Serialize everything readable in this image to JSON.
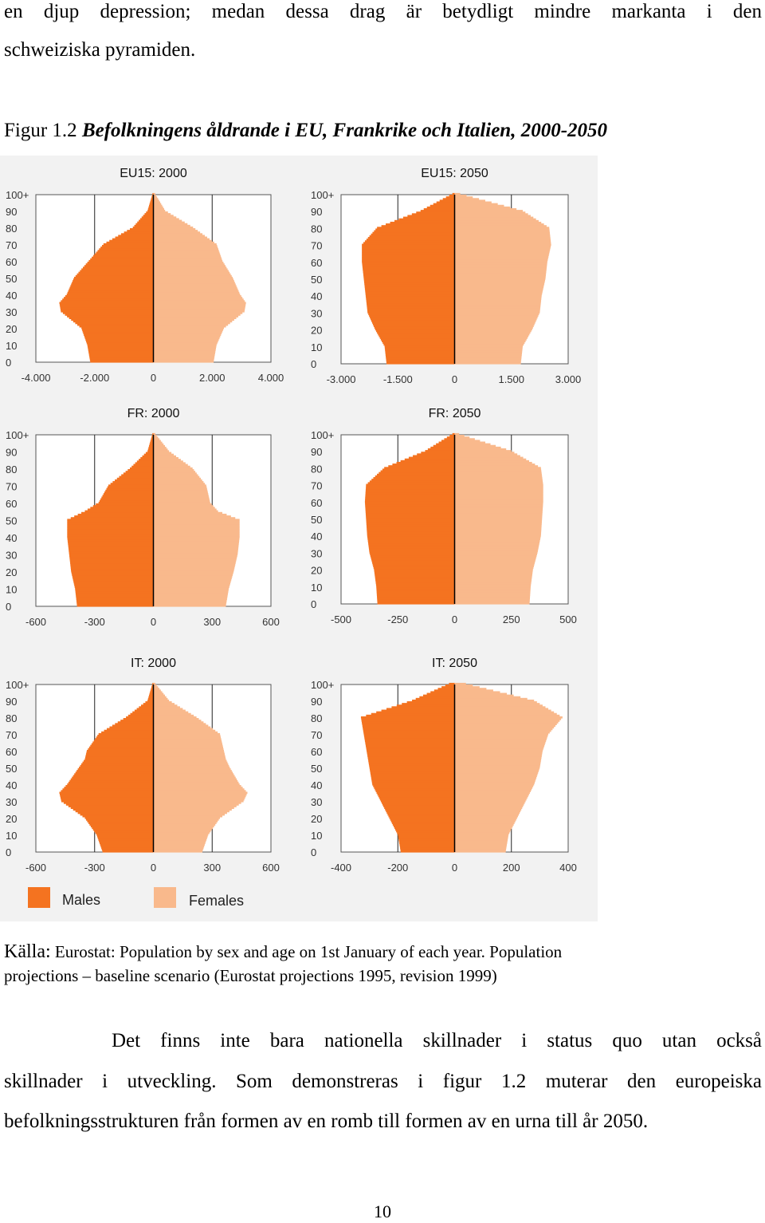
{
  "text": {
    "line1": "en djup depression; medan dessa drag är betydligt mindre markanta i den",
    "line2": "schweiziska pyramiden.",
    "caption_prefix": "Figur 1.2 ",
    "caption_title": "Befolkningens åldrande i EU, Frankrike och Italien, 2000-2050",
    "source_label": "Källa:",
    "source_line1": "Eurostat: Population by sex and age on 1st January of each year. Population",
    "source_line2": "projections – baseline scenario (Eurostat projections 1995, revision 1999)",
    "para_line1": "Det finns inte bara nationella skillnader i status quo utan också",
    "para_line2": "skillnader i utveckling. Som demonstreras i figur 1.2 muterar den europeiska",
    "para_line3": "befolkningsstrukturen från formen av en romb till formen av en urna till år 2050.",
    "page_number": "10"
  },
  "colors": {
    "males": "#f47320",
    "females": "#f9b98c",
    "figure_bg": "#f2f2f2"
  },
  "chart_data": [
    {
      "type": "population-pyramid",
      "title": "EU15: 2000",
      "ylabels": [
        "100+",
        "90",
        "80",
        "70",
        "60",
        "50",
        "40",
        "30",
        "20",
        "10",
        "0"
      ],
      "xticks": [
        "-4.000",
        "-2.000",
        "0",
        "2.000",
        "4.000"
      ],
      "xlim": [
        -4000,
        4000
      ],
      "ages": [
        0,
        10,
        20,
        30,
        35,
        40,
        50,
        60,
        70,
        80,
        90,
        100
      ],
      "males": [
        2150,
        2250,
        2450,
        3150,
        3200,
        2950,
        2700,
        2200,
        1700,
        700,
        200,
        30
      ],
      "females": [
        2050,
        2150,
        2400,
        3100,
        3150,
        2950,
        2700,
        2350,
        2150,
        1350,
        400,
        60
      ]
    },
    {
      "type": "population-pyramid",
      "title": "EU15: 2050",
      "ylabels": [
        "100+",
        "90",
        "80",
        "70",
        "60",
        "50",
        "40",
        "30",
        "20",
        "10",
        "0"
      ],
      "xticks": [
        "-3.000",
        "-1.500",
        "0",
        "1.500",
        "3.000"
      ],
      "xlim": [
        -3000,
        3000
      ],
      "ages": [
        0,
        10,
        20,
        30,
        40,
        50,
        60,
        70,
        80,
        90,
        100
      ],
      "males": [
        1800,
        1850,
        2100,
        2300,
        2350,
        2400,
        2450,
        2450,
        2050,
        900,
        60
      ],
      "females": [
        1750,
        1800,
        2050,
        2250,
        2300,
        2400,
        2450,
        2550,
        2500,
        1800,
        150
      ]
    },
    {
      "type": "population-pyramid",
      "title": "FR: 2000",
      "ylabels": [
        "100+",
        "90",
        "80",
        "70",
        "60",
        "50",
        "40",
        "30",
        "20",
        "10",
        "0"
      ],
      "xticks": [
        "-600",
        "-300",
        "0",
        "300",
        "600"
      ],
      "xlim": [
        -600,
        600
      ],
      "ages": [
        0,
        10,
        20,
        30,
        40,
        50,
        55,
        60,
        70,
        80,
        90,
        100
      ],
      "males": [
        390,
        400,
        420,
        430,
        440,
        440,
        350,
        280,
        230,
        120,
        30,
        5
      ],
      "females": [
        370,
        385,
        410,
        430,
        440,
        440,
        330,
        290,
        270,
        200,
        80,
        10
      ]
    },
    {
      "type": "population-pyramid",
      "title": "FR: 2050",
      "ylabels": [
        "100+",
        "90",
        "80",
        "70",
        "60",
        "50",
        "40",
        "30",
        "20",
        "10",
        "0"
      ],
      "xticks": [
        "-500",
        "-250",
        "0",
        "250",
        "500"
      ],
      "xlim": [
        -500,
        500
      ],
      "ages": [
        0,
        10,
        20,
        30,
        40,
        50,
        60,
        70,
        80,
        90,
        100
      ],
      "males": [
        340,
        345,
        355,
        375,
        385,
        390,
        395,
        390,
        310,
        130,
        10
      ],
      "females": [
        330,
        335,
        345,
        365,
        380,
        385,
        390,
        390,
        380,
        250,
        20
      ]
    },
    {
      "type": "population-pyramid",
      "title": "IT: 2000",
      "ylabels": [
        "100+",
        "90",
        "80",
        "70",
        "60",
        "50",
        "40",
        "30",
        "20",
        "10",
        "0"
      ],
      "xticks": [
        "-600",
        "-300",
        "0",
        "300",
        "600"
      ],
      "xlim": [
        -600,
        600
      ],
      "ages": [
        0,
        10,
        20,
        30,
        35,
        40,
        50,
        55,
        60,
        70,
        80,
        90,
        100
      ],
      "males": [
        260,
        290,
        350,
        470,
        480,
        440,
        380,
        350,
        340,
        280,
        140,
        30,
        5
      ],
      "females": [
        250,
        280,
        340,
        460,
        480,
        440,
        390,
        370,
        360,
        340,
        220,
        80,
        10
      ]
    },
    {
      "type": "population-pyramid",
      "title": "IT: 2050",
      "ylabels": [
        "100+",
        "90",
        "80",
        "70",
        "60",
        "50",
        "40",
        "30",
        "20",
        "10",
        "0"
      ],
      "xticks": [
        "-400",
        "-200",
        "0",
        "200",
        "400"
      ],
      "xlim": [
        -400,
        400
      ],
      "ages": [
        0,
        10,
        20,
        30,
        40,
        50,
        60,
        70,
        80,
        90,
        100
      ],
      "males": [
        190,
        200,
        230,
        260,
        290,
        300,
        310,
        320,
        330,
        150,
        20
      ],
      "females": [
        180,
        190,
        220,
        250,
        280,
        300,
        310,
        330,
        380,
        280,
        40
      ]
    }
  ],
  "legend": {
    "males": "Males",
    "females": "Females"
  }
}
